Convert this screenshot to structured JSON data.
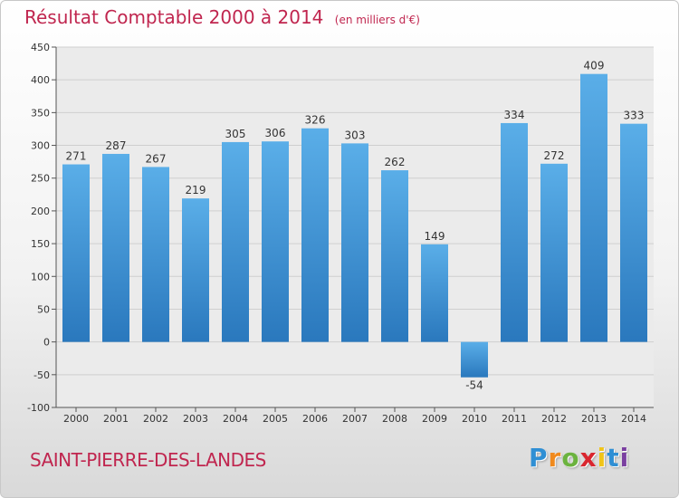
{
  "title": "Résultat Comptable 2000 à 2014",
  "subtitle": "(en milliers d'€)",
  "place_name": "SAINT-PIERRE-DES-LANDES",
  "brand": "Proxiti",
  "colors": {
    "title": "#c0264f",
    "bar_top": "#5aaee8",
    "bar_bottom": "#2a78bd",
    "grid": "#cfcfcf"
  },
  "chart_data": {
    "type": "bar",
    "title": "Résultat Comptable 2000 à 2014",
    "subtitle": "(en milliers d'€)",
    "categories": [
      "2000",
      "2001",
      "2002",
      "2003",
      "2004",
      "2005",
      "2006",
      "2007",
      "2008",
      "2009",
      "2010",
      "2011",
      "2012",
      "2013",
      "2014"
    ],
    "values": [
      271,
      287,
      267,
      219,
      305,
      306,
      326,
      303,
      262,
      149,
      -54,
      334,
      272,
      409,
      333
    ],
    "ylim": [
      -100,
      450
    ],
    "yticks": [
      -100,
      -50,
      0,
      50,
      100,
      150,
      200,
      250,
      300,
      350,
      400,
      450
    ],
    "grid": true,
    "legend": "none"
  }
}
